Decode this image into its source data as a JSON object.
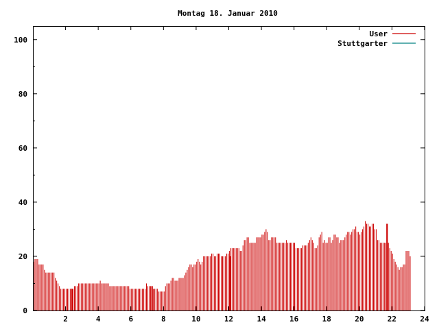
{
  "chart_data": {
    "type": "bar",
    "title": "Montag 18. Januar 2010",
    "xlabel": "",
    "ylabel": "",
    "xlim": [
      0,
      24
    ],
    "ylim": [
      0,
      105
    ],
    "x_ticks": [
      2,
      4,
      6,
      8,
      10,
      12,
      14,
      16,
      18,
      20,
      22,
      24
    ],
    "y_ticks": [
      0,
      20,
      40,
      60,
      80,
      100
    ],
    "grid": false,
    "legend_position": "top-right",
    "bar_step_hours": 0.0833,
    "series": [
      {
        "name": "User",
        "color": "#cc0000",
        "values": [
          18,
          19,
          19,
          19,
          17,
          17,
          17,
          17,
          15,
          14,
          14,
          14,
          14,
          14,
          14,
          14,
          12,
          11,
          10,
          9,
          8,
          8,
          8,
          8,
          8,
          8,
          8,
          8,
          8,
          8,
          9,
          9,
          9,
          10,
          10,
          10,
          10,
          10,
          10,
          10,
          10,
          10,
          10,
          10,
          10,
          10,
          10,
          10,
          10,
          11,
          10,
          10,
          10,
          10,
          10,
          10,
          9,
          9,
          9,
          9,
          9,
          9,
          9,
          9,
          9,
          9,
          9,
          9,
          9,
          9,
          9,
          8,
          8,
          8,
          8,
          8,
          8,
          8,
          8,
          8,
          8,
          8,
          8,
          10,
          9,
          9,
          9,
          9,
          8,
          8,
          8,
          8,
          7,
          7,
          7,
          7,
          7,
          9,
          10,
          10,
          10,
          11,
          12,
          12,
          11,
          11,
          11,
          12,
          12,
          12,
          12,
          13,
          14,
          15,
          16,
          17,
          17,
          16,
          17,
          17,
          18,
          19,
          18,
          17,
          18,
          20,
          20,
          20,
          20,
          20,
          20,
          21,
          21,
          20,
          20,
          21,
          21,
          21,
          20,
          20,
          20,
          20,
          21,
          21,
          22,
          23,
          23,
          23,
          23,
          23,
          23,
          23,
          22,
          22,
          24,
          26,
          26,
          27,
          27,
          25,
          25,
          25,
          25,
          25,
          27,
          27,
          27,
          27,
          28,
          28,
          29,
          30,
          29,
          26,
          26,
          27,
          27,
          27,
          27,
          25,
          25,
          25,
          25,
          25,
          25,
          25,
          26,
          25,
          25,
          25,
          25,
          25,
          25,
          23,
          23,
          23,
          23,
          23,
          24,
          24,
          24,
          24,
          25,
          26,
          27,
          26,
          25,
          23,
          23,
          24,
          27,
          28,
          29,
          25,
          26,
          25,
          25,
          27,
          27,
          25,
          26,
          28,
          28,
          27,
          27,
          25,
          26,
          26,
          26,
          27,
          28,
          29,
          29,
          28,
          29,
          30,
          30,
          31,
          29,
          29,
          28,
          29,
          30,
          31,
          33,
          32,
          32,
          31,
          31,
          32,
          32,
          30,
          30,
          26,
          26,
          25,
          25,
          25,
          25,
          25,
          25,
          25,
          23,
          22,
          21,
          19,
          18,
          17,
          16,
          15,
          16,
          16,
          17,
          17,
          22,
          22,
          22,
          20
        ],
        "highlight_values": [
          {
            "x": 2.4,
            "y": 8
          },
          {
            "x": 7.3,
            "y": 9
          },
          {
            "x": 12.1,
            "y": 20
          },
          {
            "x": 21.7,
            "y": 32
          }
        ]
      },
      {
        "name": "Stuttgarter",
        "color": "#008080",
        "values": []
      }
    ]
  }
}
